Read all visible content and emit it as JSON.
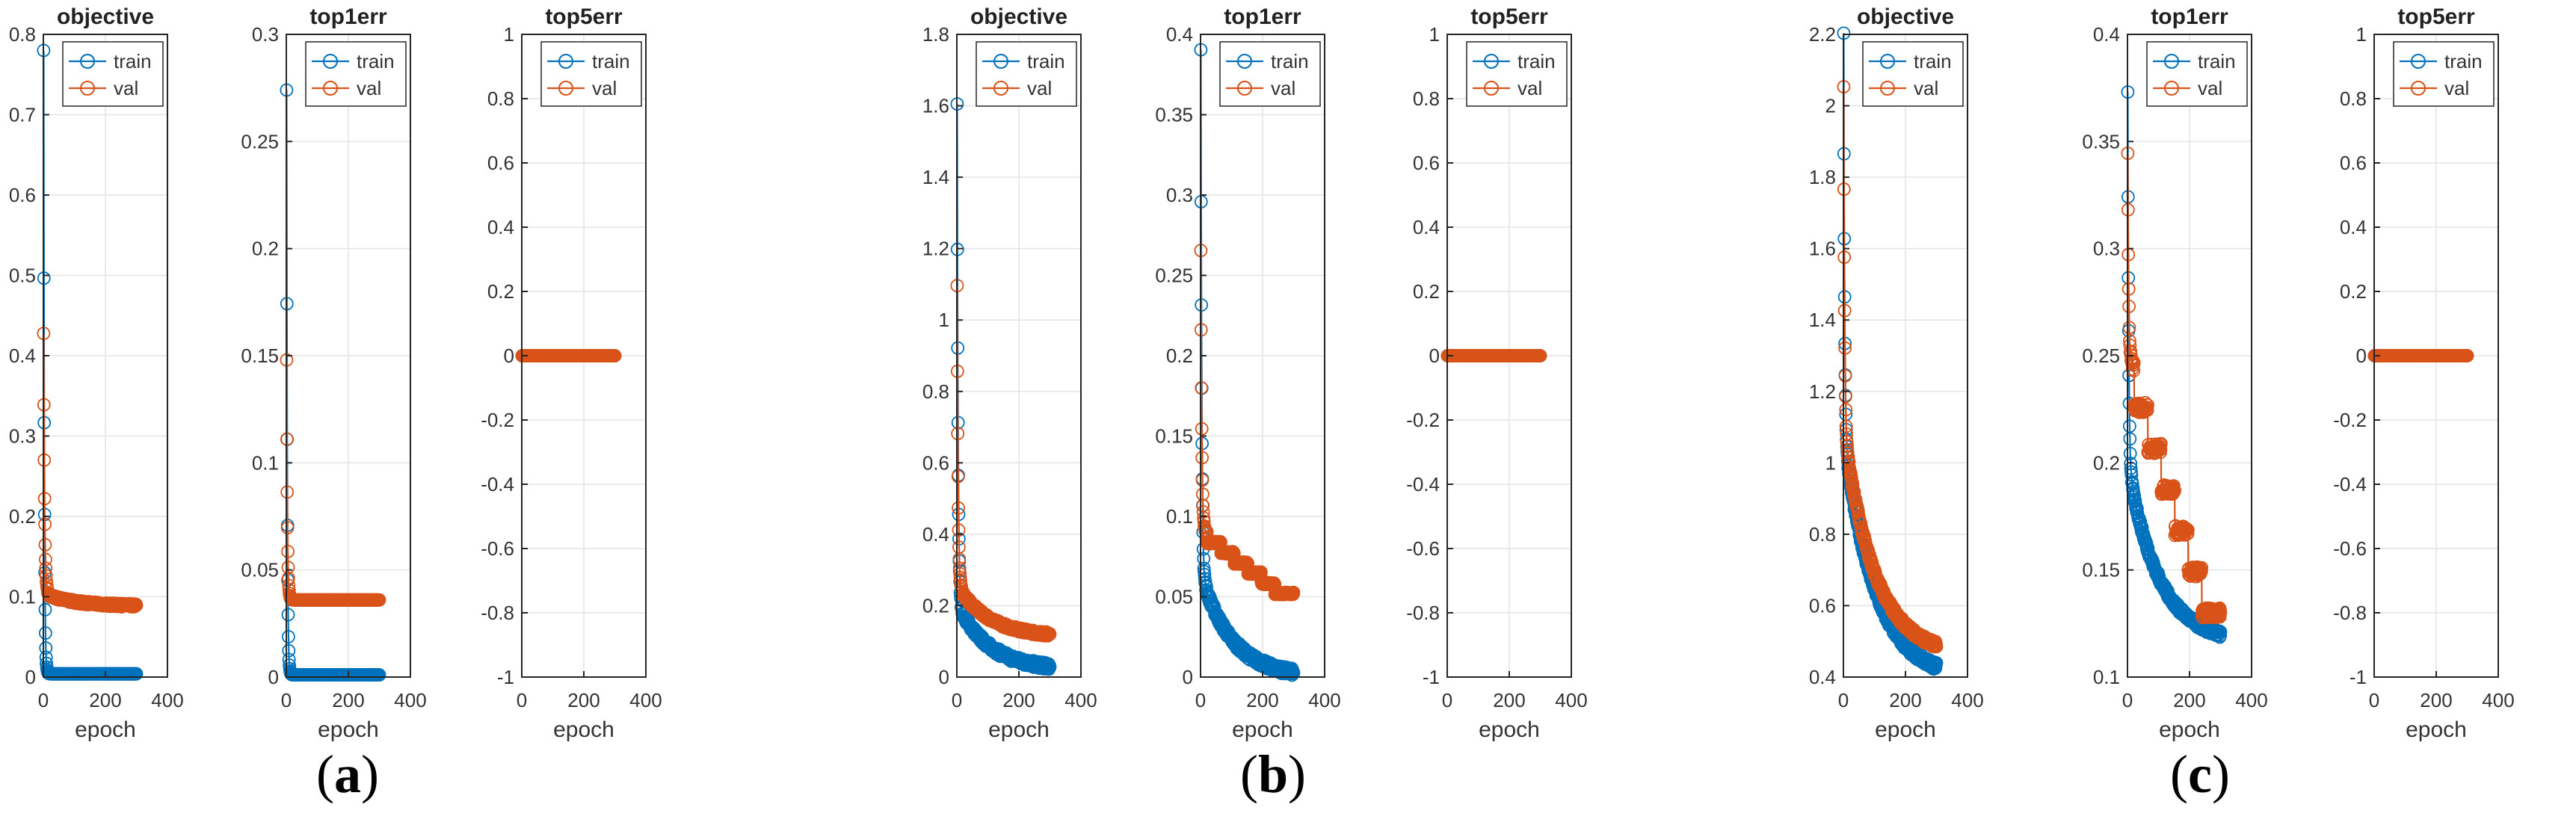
{
  "colors": {
    "train": "#0072BD",
    "val": "#D95319",
    "grid": "#e4e4e4",
    "axis": "#262626"
  },
  "captions": [
    "a",
    "b",
    "c"
  ],
  "chart_data": [
    {
      "type": "line",
      "panel": "a",
      "title": "objective",
      "xlabel": "epoch",
      "ylabel": "",
      "xlim": [
        0,
        400
      ],
      "ylim": [
        0,
        0.8
      ],
      "xticks": [
        0,
        200,
        400
      ],
      "yticks": [
        0,
        0.1,
        0.2,
        0.3,
        0.4,
        0.5,
        0.6,
        0.7,
        0.8
      ],
      "legend": [
        "train",
        "val"
      ],
      "legend_position": "top-right",
      "grid": true,
      "series": [
        {
          "name": "train",
          "curve": {
            "n": 300,
            "start": 0.78,
            "end": 0.004,
            "shape": "sharp-drop"
          }
        },
        {
          "name": "val",
          "curve": {
            "n": 300,
            "start": 0.43,
            "plateau": 0.104,
            "end": 0.089,
            "shape": "drop-then-slow"
          }
        }
      ]
    },
    {
      "type": "line",
      "panel": "a",
      "title": "top1err",
      "xlabel": "epoch",
      "ylabel": "",
      "xlim": [
        0,
        400
      ],
      "ylim": [
        0,
        0.3
      ],
      "xticks": [
        0,
        200,
        400
      ],
      "yticks": [
        0,
        0.05,
        0.1,
        0.15,
        0.2,
        0.25,
        0.3
      ],
      "legend": [
        "train",
        "val"
      ],
      "legend_position": "top-right",
      "grid": true,
      "series": [
        {
          "name": "train",
          "curve": {
            "n": 300,
            "start": 0.274,
            "end": 0.001,
            "shape": "sharp-drop"
          }
        },
        {
          "name": "val",
          "curve": {
            "n": 300,
            "start": 0.148,
            "plateau": 0.036,
            "end": 0.036,
            "shape": "drop-then-flat"
          }
        }
      ]
    },
    {
      "type": "line",
      "panel": "a",
      "title": "top5err",
      "xlabel": "epoch",
      "ylabel": "",
      "xlim": [
        0,
        400
      ],
      "ylim": [
        -1,
        1
      ],
      "xticks": [
        0,
        200,
        400
      ],
      "yticks": [
        -1,
        -0.8,
        -0.6,
        -0.4,
        -0.2,
        0,
        0.2,
        0.4,
        0.6,
        0.8,
        1
      ],
      "legend": [
        "train",
        "val"
      ],
      "legend_position": "top-right",
      "grid": true,
      "series": [
        {
          "name": "train",
          "curve": {
            "n": 300,
            "start": 0,
            "end": 0,
            "shape": "flat"
          }
        },
        {
          "name": "val",
          "curve": {
            "n": 300,
            "start": 0,
            "end": 0,
            "shape": "flat"
          }
        }
      ]
    },
    {
      "type": "line",
      "panel": "b",
      "title": "objective",
      "xlabel": "epoch",
      "ylabel": "",
      "xlim": [
        0,
        400
      ],
      "ylim": [
        0,
        1.8
      ],
      "xticks": [
        0,
        200,
        400
      ],
      "yticks": [
        0,
        0.2,
        0.4,
        0.6,
        0.8,
        1,
        1.2,
        1.4,
        1.6,
        1.8
      ],
      "legend": [
        "train",
        "val"
      ],
      "legend_position": "top-right",
      "grid": true,
      "series": [
        {
          "name": "train",
          "curve": {
            "n": 300,
            "start": 1.6,
            "plateau": 0.21,
            "end": 0.03,
            "shape": "drop-then-decay"
          }
        },
        {
          "name": "val",
          "curve": {
            "n": 300,
            "start": 1.1,
            "plateau": 0.26,
            "end": 0.12,
            "shape": "drop-then-decay"
          }
        }
      ]
    },
    {
      "type": "line",
      "panel": "b",
      "title": "top1err",
      "xlabel": "epoch",
      "ylabel": "",
      "xlim": [
        0,
        400
      ],
      "ylim": [
        0,
        0.4
      ],
      "xticks": [
        0,
        200,
        400
      ],
      "yticks": [
        0,
        0.05,
        0.1,
        0.15,
        0.2,
        0.25,
        0.3,
        0.35,
        0.4
      ],
      "legend": [
        "train",
        "val"
      ],
      "legend_position": "top-right",
      "grid": true,
      "series": [
        {
          "name": "train",
          "curve": {
            "n": 300,
            "start": 0.39,
            "plateau": 0.065,
            "end": 0.003,
            "shape": "drop-then-decay"
          }
        },
        {
          "name": "val",
          "curve": {
            "n": 300,
            "start": 0.265,
            "plateau": 0.09,
            "end": 0.052,
            "shape": "drop-then-steps"
          }
        }
      ]
    },
    {
      "type": "line",
      "panel": "b",
      "title": "top5err",
      "xlabel": "epoch",
      "ylabel": "",
      "xlim": [
        0,
        400
      ],
      "ylim": [
        -1,
        1
      ],
      "xticks": [
        0,
        200,
        400
      ],
      "yticks": [
        -1,
        -0.8,
        -0.6,
        -0.4,
        -0.2,
        0,
        0.2,
        0.4,
        0.6,
        0.8,
        1
      ],
      "legend": [
        "train",
        "val"
      ],
      "legend_position": "top-right",
      "grid": true,
      "series": [
        {
          "name": "train",
          "curve": {
            "n": 300,
            "start": 0,
            "end": 0,
            "shape": "flat"
          }
        },
        {
          "name": "val",
          "curve": {
            "n": 300,
            "start": 0,
            "end": 0,
            "shape": "flat"
          }
        }
      ]
    },
    {
      "type": "line",
      "panel": "c",
      "title": "objective",
      "xlabel": "epoch",
      "ylabel": "",
      "xlim": [
        0,
        400
      ],
      "ylim": [
        0.4,
        2.2
      ],
      "xticks": [
        0,
        200,
        400
      ],
      "yticks": [
        0.4,
        0.6,
        0.8,
        1,
        1.2,
        1.4,
        1.6,
        1.8,
        2,
        2.2
      ],
      "legend": [
        "train",
        "val"
      ],
      "legend_position": "top-right",
      "grid": true,
      "series": [
        {
          "name": "train",
          "curve": {
            "n": 300,
            "start": 2.2,
            "plateau": 1.08,
            "end": 0.43,
            "shape": "drop-then-decay"
          }
        },
        {
          "name": "val",
          "curve": {
            "n": 300,
            "start": 2.06,
            "plateau": 1.1,
            "end": 0.49,
            "shape": "drop-then-decay"
          }
        }
      ]
    },
    {
      "type": "line",
      "panel": "c",
      "title": "top1err",
      "xlabel": "epoch",
      "ylabel": "",
      "xlim": [
        0,
        400
      ],
      "ylim": [
        0.1,
        0.4
      ],
      "xticks": [
        0,
        200,
        400
      ],
      "yticks": [
        0.1,
        0.15,
        0.2,
        0.25,
        0.3,
        0.35,
        0.4
      ],
      "legend": [
        "train",
        "val"
      ],
      "legend_position": "top-right",
      "grid": true,
      "series": [
        {
          "name": "train",
          "curve": {
            "n": 300,
            "start": 0.375,
            "plateau": 0.2,
            "end": 0.12,
            "shape": "drop-then-decay"
          }
        },
        {
          "name": "val",
          "curve": {
            "n": 300,
            "start": 0.345,
            "plateau": 0.245,
            "end": 0.13,
            "shape": "drop-then-steps"
          }
        }
      ]
    },
    {
      "type": "line",
      "panel": "c",
      "title": "top5err",
      "xlabel": "epoch",
      "ylabel": "",
      "xlim": [
        0,
        400
      ],
      "ylim": [
        -1,
        1
      ],
      "xticks": [
        0,
        200,
        400
      ],
      "yticks": [
        -1,
        -0.8,
        -0.6,
        -0.4,
        -0.2,
        0,
        0.2,
        0.4,
        0.6,
        0.8,
        1
      ],
      "legend": [
        "train",
        "val"
      ],
      "legend_position": "top-right",
      "grid": true,
      "series": [
        {
          "name": "train",
          "curve": {
            "n": 300,
            "start": 0,
            "end": 0,
            "shape": "flat"
          }
        },
        {
          "name": "val",
          "curve": {
            "n": 300,
            "start": 0,
            "end": 0,
            "shape": "flat"
          }
        }
      ]
    }
  ]
}
